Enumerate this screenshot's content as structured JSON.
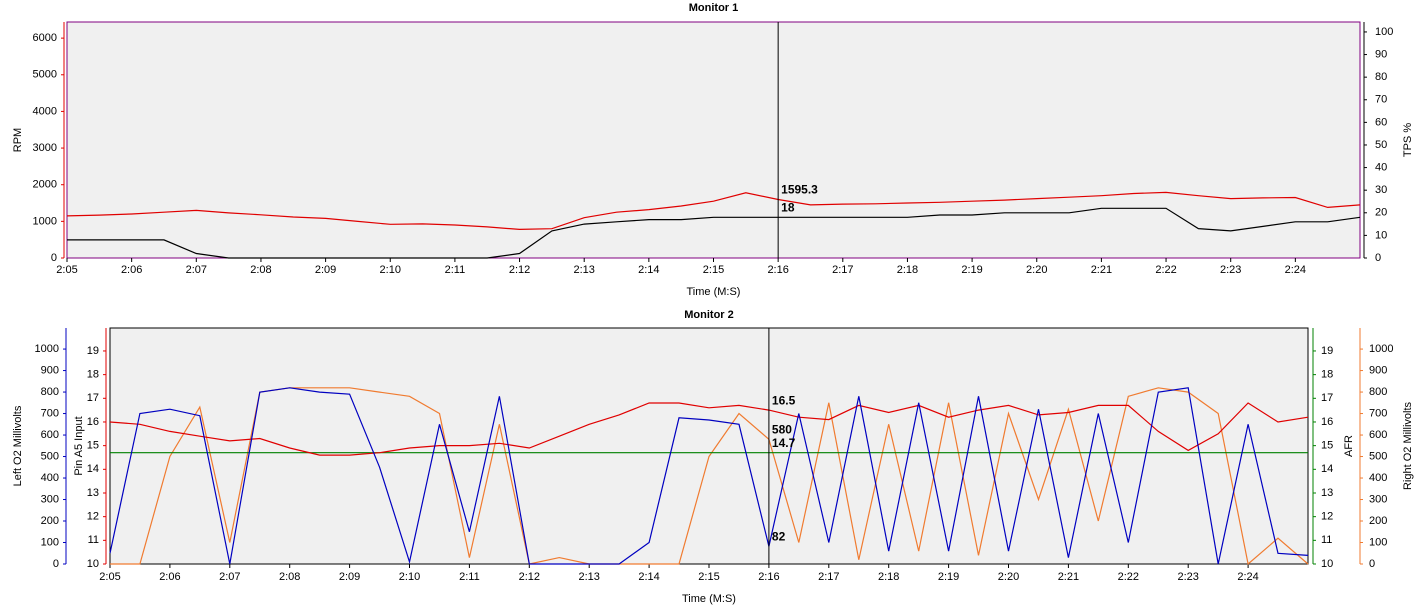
{
  "chart_data": [
    {
      "type": "line",
      "title": "Monitor 1",
      "x_label": "Time (M:S)",
      "xlim": [
        125,
        145
      ],
      "xticks": [
        {
          "value": 125,
          "label": "2:05"
        },
        {
          "value": 126,
          "label": "2:06"
        },
        {
          "value": 127,
          "label": "2:07"
        },
        {
          "value": 128,
          "label": "2:08"
        },
        {
          "value": 129,
          "label": "2:09"
        },
        {
          "value": 130,
          "label": "2:10"
        },
        {
          "value": 131,
          "label": "2:11"
        },
        {
          "value": 132,
          "label": "2:12"
        },
        {
          "value": 133,
          "label": "2:13"
        },
        {
          "value": 134,
          "label": "2:14"
        },
        {
          "value": 135,
          "label": "2:15"
        },
        {
          "value": 136,
          "label": "2:16"
        },
        {
          "value": 137,
          "label": "2:17"
        },
        {
          "value": 138,
          "label": "2:18"
        },
        {
          "value": 139,
          "label": "2:19"
        },
        {
          "value": 140,
          "label": "2:20"
        },
        {
          "value": 141,
          "label": "2:21"
        },
        {
          "value": 142,
          "label": "2:22"
        },
        {
          "value": 143,
          "label": "2:23"
        },
        {
          "value": 144,
          "label": "2:24"
        }
      ],
      "cursor_x": 136,
      "border": "#800080",
      "axes": [
        {
          "side": "left",
          "lim": [
            0,
            6440
          ],
          "ticks": [
            0,
            1000,
            2000,
            3000,
            4000,
            5000,
            6000
          ]
        },
        {
          "side": "right",
          "lim": [
            0,
            104.4
          ],
          "ticks": [
            0,
            10,
            20,
            30,
            40,
            50,
            60,
            70,
            80,
            90,
            100
          ]
        }
      ],
      "x": [
        125,
        125.5,
        126,
        126.5,
        127,
        127.5,
        128,
        128.5,
        129,
        129.5,
        130,
        130.5,
        131,
        131.5,
        132,
        132.5,
        133,
        133.5,
        134,
        134.5,
        135,
        135.5,
        136,
        136.5,
        137,
        137.5,
        138,
        138.5,
        139,
        139.5,
        140,
        140.5,
        141,
        141.5,
        142,
        142.5,
        143,
        143.5,
        144,
        144.5,
        145
      ],
      "series": [
        {
          "name": "RPM",
          "color": "#e00000",
          "axis": 0,
          "values": [
            1150,
            1170,
            1200,
            1250,
            1300,
            1230,
            1180,
            1120,
            1080,
            1000,
            920,
            930,
            900,
            850,
            780,
            800,
            1100,
            1250,
            1320,
            1420,
            1550,
            1780,
            1595.3,
            1450,
            1470,
            1480,
            1500,
            1520,
            1550,
            1580,
            1620,
            1660,
            1700,
            1760,
            1790,
            1700,
            1620,
            1640,
            1650,
            1380,
            1450
          ]
        },
        {
          "name": "TPS %",
          "color": "#000000",
          "axis": 1,
          "values": [
            8,
            8,
            8,
            8,
            2,
            0,
            0,
            0,
            0,
            0,
            0,
            0,
            0,
            0,
            2,
            12,
            15,
            16,
            17,
            17,
            18,
            18,
            18,
            18,
            18,
            18,
            18,
            19,
            19,
            20,
            20,
            20,
            22,
            22,
            22,
            13,
            12,
            14,
            16,
            16,
            18
          ]
        }
      ]
    },
    {
      "type": "line",
      "title": "Monitor 2",
      "x_label": "Time (M:S)",
      "xlim": [
        125,
        145
      ],
      "xticks": [
        {
          "value": 125,
          "label": "2:05"
        },
        {
          "value": 126,
          "label": "2:06"
        },
        {
          "value": 127,
          "label": "2:07"
        },
        {
          "value": 128,
          "label": "2:08"
        },
        {
          "value": 129,
          "label": "2:09"
        },
        {
          "value": 130,
          "label": "2:10"
        },
        {
          "value": 131,
          "label": "2:11"
        },
        {
          "value": 132,
          "label": "2:12"
        },
        {
          "value": 133,
          "label": "2:13"
        },
        {
          "value": 134,
          "label": "2:14"
        },
        {
          "value": 135,
          "label": "2:15"
        },
        {
          "value": 136,
          "label": "2:16"
        },
        {
          "value": 137,
          "label": "2:17"
        },
        {
          "value": 138,
          "label": "2:18"
        },
        {
          "value": 139,
          "label": "2:19"
        },
        {
          "value": 140,
          "label": "2:20"
        },
        {
          "value": 141,
          "label": "2:21"
        },
        {
          "value": 142,
          "label": "2:22"
        },
        {
          "value": 143,
          "label": "2:23"
        },
        {
          "value": 144,
          "label": "2:24"
        }
      ],
      "cursor_x": 136,
      "border": "#000000",
      "axes": [
        {
          "side": "left",
          "lim": [
            0,
            1098
          ],
          "ticks": [
            0,
            100,
            200,
            300,
            400,
            500,
            600,
            700,
            800,
            900,
            1000
          ]
        },
        {
          "side": "left",
          "lim": [
            10,
            19.97
          ],
          "ticks": [
            10,
            11,
            12,
            13,
            14,
            15,
            16,
            17,
            18,
            19
          ]
        },
        {
          "side": "right",
          "lim": [
            10,
            19.97
          ],
          "ticks": [
            10,
            11,
            12,
            13,
            14,
            15,
            16,
            17,
            18,
            19
          ]
        },
        {
          "side": "right",
          "lim": [
            0,
            1098
          ],
          "ticks": [
            0,
            100,
            200,
            300,
            400,
            500,
            600,
            700,
            800,
            900,
            1000
          ]
        }
      ],
      "x": [
        125,
        125.5,
        126,
        126.5,
        127,
        127.5,
        128,
        128.5,
        129,
        129.5,
        130,
        130.5,
        131,
        131.5,
        132,
        132.5,
        133,
        133.5,
        134,
        134.5,
        135,
        135.5,
        136,
        136.5,
        137,
        137.5,
        138,
        138.5,
        139,
        139.5,
        140,
        140.5,
        141,
        141.5,
        142,
        142.5,
        143,
        143.5,
        144,
        144.5,
        145
      ],
      "series": [
        {
          "name": "Right O2 Millivolts",
          "color": "#f07b30",
          "axis": 3,
          "values": [
            0,
            0,
            500,
            730,
            100,
            800,
            820,
            820,
            820,
            800,
            780,
            700,
            30,
            650,
            0,
            30,
            0,
            0,
            0,
            0,
            500,
            700,
            580,
            100,
            750,
            20,
            650,
            60,
            750,
            40,
            700,
            300,
            720,
            200,
            780,
            820,
            800,
            700,
            0,
            120,
            0
          ]
        },
        {
          "name": "AFR",
          "color": "#008000",
          "axis": 2,
          "values": [
            14.7,
            14.7,
            14.7,
            14.7,
            14.7,
            14.7,
            14.7,
            14.7,
            14.7,
            14.7,
            14.7,
            14.7,
            14.7,
            14.7,
            14.7,
            14.7,
            14.7,
            14.7,
            14.7,
            14.7,
            14.7,
            14.7,
            14.7,
            14.7,
            14.7,
            14.7,
            14.7,
            14.7,
            14.7,
            14.7,
            14.7,
            14.7,
            14.7,
            14.7,
            14.7,
            14.7,
            14.7,
            14.7,
            14.7,
            14.7,
            14.7
          ]
        },
        {
          "name": "Pin A5 Input",
          "color": "#e00000",
          "axis": 1,
          "values": [
            16.0,
            15.9,
            15.6,
            15.4,
            15.2,
            15.3,
            14.9,
            14.6,
            14.6,
            14.7,
            14.9,
            15.0,
            15.0,
            15.1,
            14.9,
            15.4,
            15.9,
            16.3,
            16.8,
            16.8,
            16.6,
            16.7,
            16.5,
            16.2,
            16.1,
            16.7,
            16.4,
            16.7,
            16.2,
            16.5,
            16.7,
            16.3,
            16.4,
            16.7,
            16.7,
            15.6,
            14.8,
            15.5,
            16.8,
            16.0,
            16.2
          ]
        },
        {
          "name": "Left O2 Millivolts",
          "color": "#0000c0",
          "axis": 0,
          "values": [
            50,
            700,
            720,
            690,
            0,
            800,
            820,
            800,
            790,
            450,
            10,
            650,
            150,
            780,
            0,
            0,
            0,
            0,
            100,
            680,
            670,
            650,
            82,
            700,
            100,
            780,
            60,
            750,
            60,
            780,
            60,
            720,
            30,
            700,
            100,
            800,
            820,
            0,
            650,
            50,
            40
          ]
        }
      ]
    }
  ]
}
